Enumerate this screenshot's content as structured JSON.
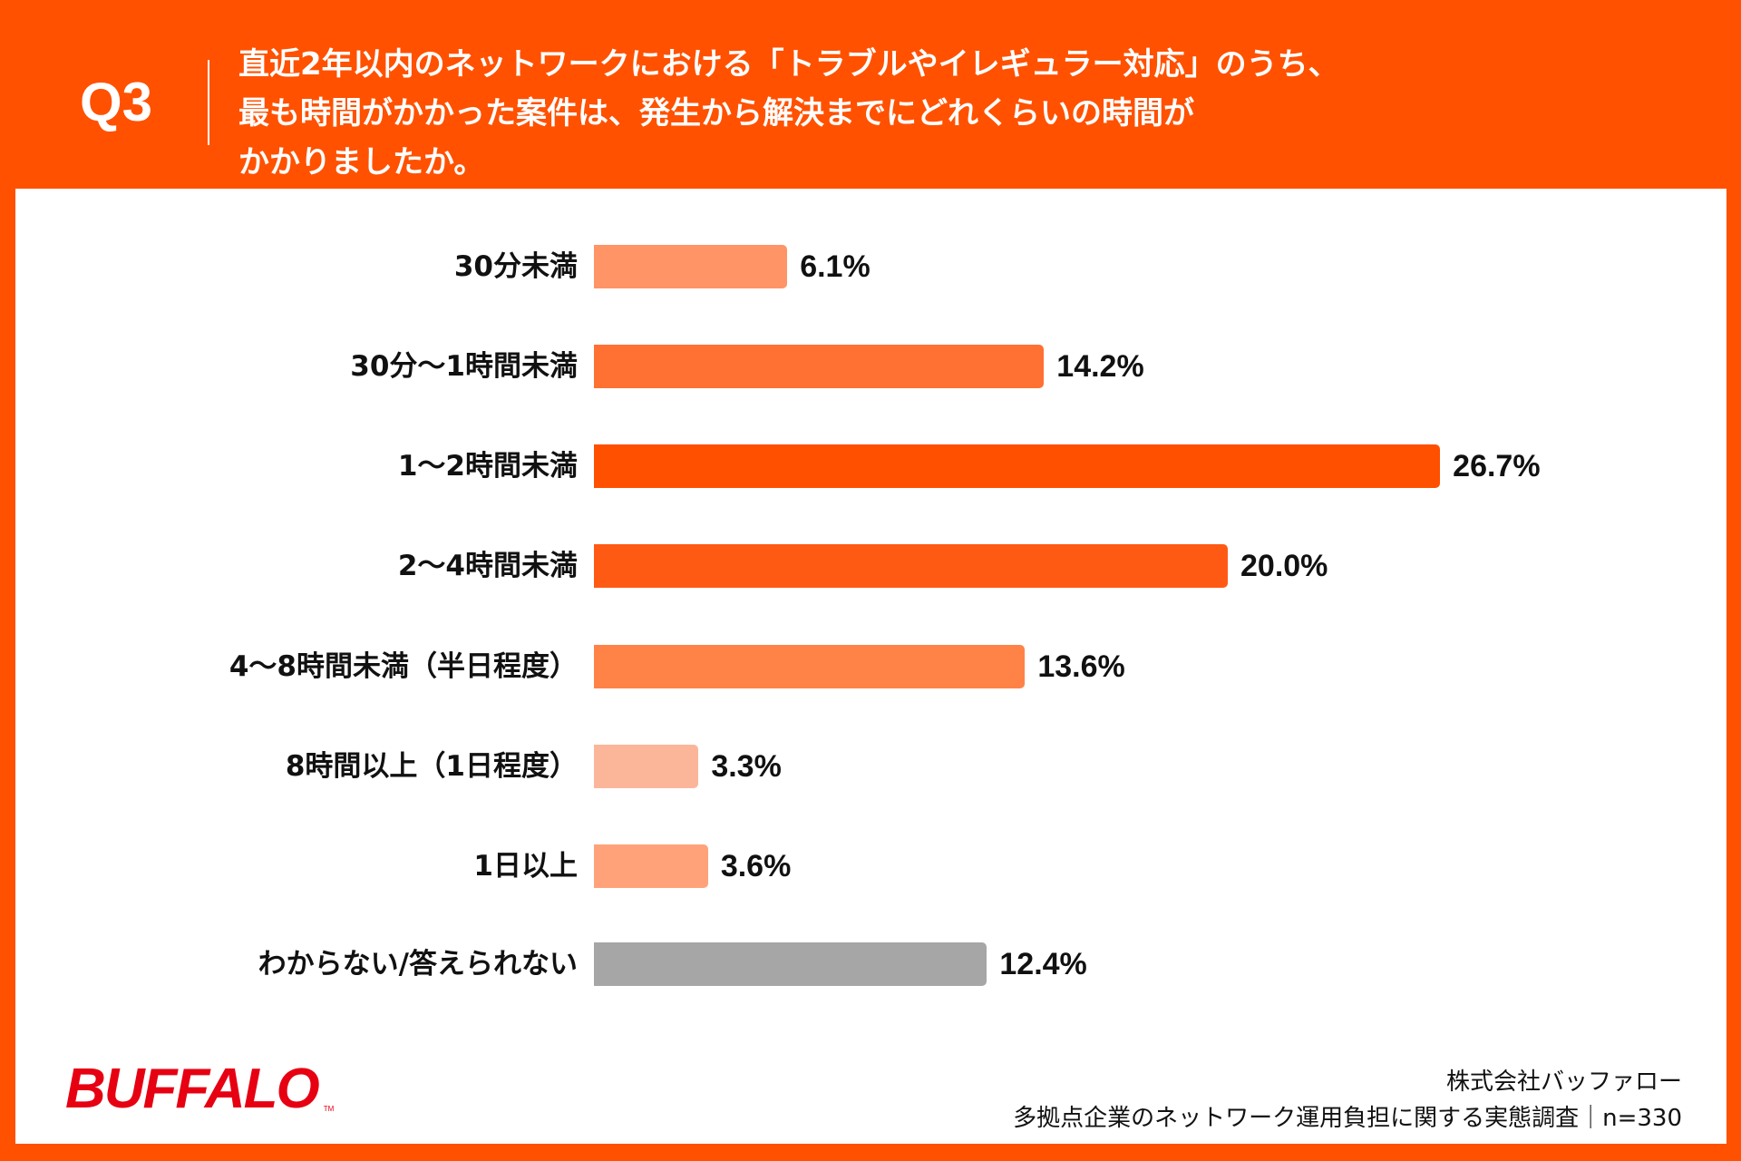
{
  "header": {
    "question_number": "Q3",
    "title_lines": [
      "直近2年以内のネットワークにおける「トラブルやイレギュラー対応」のうち、",
      "最も時間がかかった案件は、発生から解決までにどれくらいの時間が",
      "かかりましたか。"
    ]
  },
  "colors": {
    "header_bg": "#FF5100",
    "brand_logo": "#E60012"
  },
  "chart_data": {
    "type": "bar",
    "orientation": "horizontal",
    "unit": "%",
    "categories": [
      "30分未満",
      "30分〜1時間未満",
      "1〜2時間未満",
      "2〜4時間未満",
      "4〜8時間未満（半日程度）",
      "8時間以上（1日程度）",
      "1日以上",
      "わからない/答えられない"
    ],
    "values": [
      6.1,
      14.2,
      26.7,
      20.0,
      13.6,
      3.3,
      3.6,
      12.4
    ],
    "value_labels": [
      "6.1%",
      "14.2%",
      "26.7%",
      "20.0%",
      "13.6%",
      "3.3%",
      "3.6%",
      "12.4%"
    ],
    "bar_colors": [
      "#FF9466",
      "#FF7033",
      "#FF5000",
      "#FF5A14",
      "#FF8247",
      "#FBB69A",
      "#FFA27A",
      "#A6A6A6"
    ],
    "grid": false,
    "axes_visible": false
  },
  "footer": {
    "logo_text": "BUFFALO",
    "logo_tm": "TM",
    "company": "株式会社バッファロー",
    "survey": "多拠点企業のネットワーク運用負担に関する実態調査｜n=330"
  }
}
